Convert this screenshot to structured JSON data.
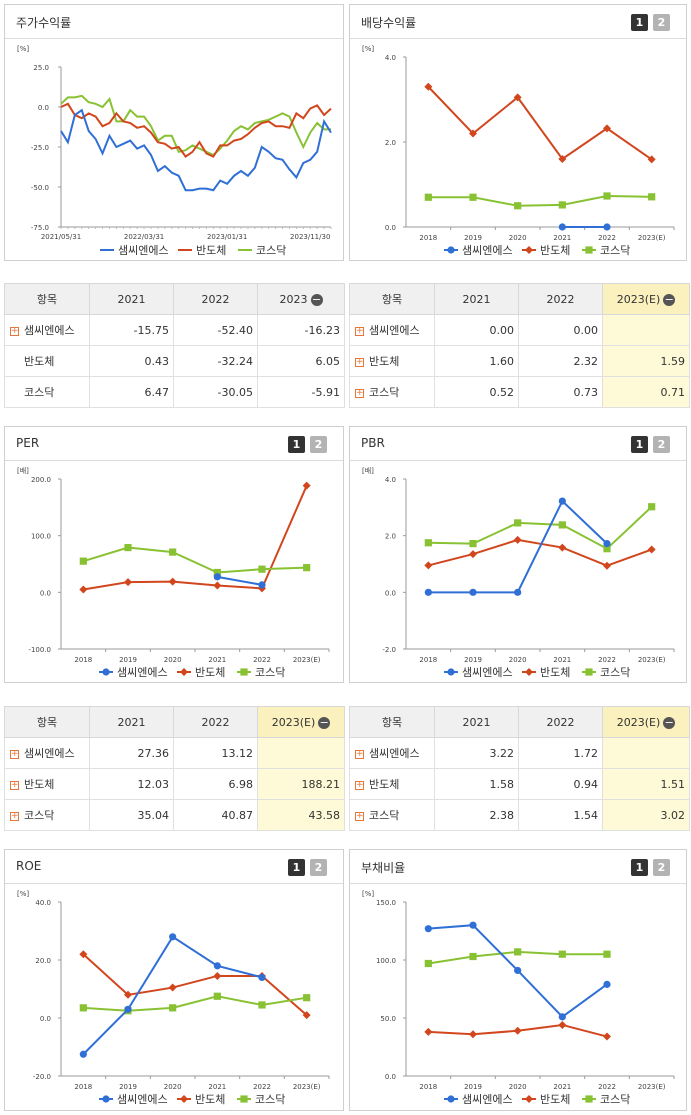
{
  "colors": {
    "samsung": "#2f6fd6",
    "semi": "#d2461e",
    "kosdaq": "#88c232"
  },
  "legend": [
    "샘씨엔에스",
    "반도체",
    "코스닥"
  ],
  "icons": {
    "page1": "page-1-icon",
    "page2": "page-2-icon",
    "expand": "plus-box-icon",
    "collapse": "minus-circle-icon"
  },
  "panels": {
    "stock": {
      "title": "주가수익률",
      "unit": "[%]",
      "yticks": [
        "25.0",
        "0.0",
        "-25.0",
        "-50.0",
        "-75.0"
      ],
      "xticks": [
        "2021/05/31",
        "2022/03/31",
        "2023/01/31",
        "2023/11/30"
      ]
    },
    "div": {
      "title": "배당수익률",
      "unit": "[%]",
      "yticks": [
        "4.0",
        "2.0",
        "0.0"
      ],
      "pg1": "1",
      "pg2": "2"
    },
    "per": {
      "title": "PER",
      "unit": "[배]",
      "yticks": [
        "200.0",
        "100.0",
        "0.0",
        "-100.0"
      ],
      "pg1": "1",
      "pg2": "2"
    },
    "pbr": {
      "title": "PBR",
      "unit": "[배]",
      "yticks": [
        "4.0",
        "2.0",
        "0.0",
        "-2.0"
      ],
      "pg1": "1",
      "pg2": "2"
    },
    "roe": {
      "title": "ROE",
      "unit": "[%]",
      "yticks": [
        "40.0",
        "20.0",
        "0.0",
        "-20.0"
      ],
      "pg1": "1",
      "pg2": "2"
    },
    "debt": {
      "title": "부채비율",
      "unit": "[%]",
      "yticks": [
        "150.0",
        "100.0",
        "50.0",
        "0.0"
      ],
      "pg1": "1",
      "pg2": "2"
    }
  },
  "tables": {
    "stock": {
      "headers": [
        "항목",
        "2021",
        "2022",
        "2023"
      ],
      "rows": [
        {
          "label": "샘씨엔에스",
          "v": [
            "-15.75",
            "-52.40",
            "-16.23"
          ]
        },
        {
          "label": "반도체",
          "v": [
            "0.43",
            "-32.24",
            "6.05"
          ]
        },
        {
          "label": "코스닥",
          "v": [
            "6.47",
            "-30.05",
            "-5.91"
          ]
        }
      ]
    },
    "div": {
      "headers": [
        "항목",
        "2021",
        "2022",
        "2023(E)"
      ],
      "rows": [
        {
          "label": "샘씨엔에스",
          "v": [
            "0.00",
            "0.00",
            ""
          ]
        },
        {
          "label": "반도체",
          "v": [
            "1.60",
            "2.32",
            "1.59"
          ]
        },
        {
          "label": "코스닥",
          "v": [
            "0.52",
            "0.73",
            "0.71"
          ]
        }
      ]
    },
    "per": {
      "headers": [
        "항목",
        "2021",
        "2022",
        "2023(E)"
      ],
      "rows": [
        {
          "label": "샘씨엔에스",
          "v": [
            "27.36",
            "13.12",
            ""
          ]
        },
        {
          "label": "반도체",
          "v": [
            "12.03",
            "6.98",
            "188.21"
          ]
        },
        {
          "label": "코스닥",
          "v": [
            "35.04",
            "40.87",
            "43.58"
          ]
        }
      ]
    },
    "pbr": {
      "headers": [
        "항목",
        "2021",
        "2022",
        "2023(E)"
      ],
      "rows": [
        {
          "label": "샘씨엔에스",
          "v": [
            "3.22",
            "1.72",
            ""
          ]
        },
        {
          "label": "반도체",
          "v": [
            "1.58",
            "0.94",
            "1.51"
          ]
        },
        {
          "label": "코스닥",
          "v": [
            "2.38",
            "1.54",
            "3.02"
          ]
        }
      ]
    }
  },
  "chart_data": [
    {
      "id": "stock",
      "type": "line",
      "title": "주가수익률",
      "ylabel": "[%]",
      "ylim": [
        -75,
        25
      ],
      "xlim": [
        0,
        41
      ],
      "x_tick_labels": [
        "2021/05/31",
        "2022/03/31",
        "2023/01/31",
        "2023/11/30"
      ],
      "x_tick_index": [
        0,
        12,
        24,
        36
      ],
      "series": [
        {
          "name": "샘씨엔에스",
          "color": "#2f6fd6",
          "values": [
            -15,
            -22,
            -5,
            -2,
            -15,
            -20,
            -29,
            -18,
            -25,
            -23,
            -21,
            -26,
            -24,
            -30,
            -40,
            -37,
            -41,
            -43,
            -52,
            -52,
            -51,
            -51,
            -52,
            -46,
            -48,
            -43,
            -40,
            -43,
            -38,
            -25,
            -28,
            -32,
            -33,
            -39,
            -44,
            -35,
            -33,
            -28,
            -9,
            -16
          ]
        },
        {
          "name": "반도체",
          "color": "#d2461e",
          "values": [
            0,
            2,
            -5,
            -7,
            -4,
            -6,
            -12,
            -10,
            -4,
            -9,
            -10,
            -13,
            -12,
            -16,
            -22,
            -23,
            -26,
            -25,
            -31,
            -28,
            -22,
            -29,
            -31,
            -24,
            -24,
            -21,
            -20,
            -17,
            -13,
            -10,
            -9,
            -12,
            -12,
            -13,
            -4,
            -7,
            -1,
            1,
            -5,
            -1
          ]
        },
        {
          "name": "코스닥",
          "color": "#88c232",
          "values": [
            2,
            6,
            6,
            7,
            3,
            2,
            0,
            5,
            -9,
            -9,
            -2,
            -6,
            -6,
            -12,
            -21,
            -18,
            -18,
            -28,
            -27,
            -24,
            -26,
            -28,
            -30,
            -26,
            -21,
            -15,
            -12,
            -14,
            -10,
            -9,
            -8,
            -6,
            -4,
            -6,
            -16,
            -25,
            -16,
            -10,
            -14,
            -14
          ]
        }
      ]
    },
    {
      "id": "div",
      "type": "line",
      "title": "배당수익률",
      "ylabel": "[%]",
      "ylim": [
        0,
        4
      ],
      "categories": [
        "2018",
        "2019",
        "2020",
        "2021",
        "2022",
        "2023(E)"
      ],
      "series": [
        {
          "name": "샘씨엔에스",
          "color": "#2f6fd6",
          "marker": "circle",
          "values": [
            null,
            null,
            null,
            0.0,
            0.0,
            null
          ]
        },
        {
          "name": "반도체",
          "color": "#d2461e",
          "marker": "diamond",
          "values": [
            3.3,
            2.2,
            3.05,
            1.6,
            2.32,
            1.59
          ]
        },
        {
          "name": "코스닥",
          "color": "#88c232",
          "marker": "square",
          "values": [
            0.7,
            0.7,
            0.5,
            0.52,
            0.73,
            0.71
          ]
        }
      ]
    },
    {
      "id": "per",
      "type": "line",
      "title": "PER",
      "ylabel": "[배]",
      "ylim": [
        -100,
        200
      ],
      "categories": [
        "2018",
        "2019",
        "2020",
        "2021",
        "2022",
        "2023(E)"
      ],
      "series": [
        {
          "name": "샘씨엔에스",
          "color": "#2f6fd6",
          "marker": "circle",
          "values": [
            null,
            null,
            null,
            27.36,
            13.12,
            null
          ]
        },
        {
          "name": "반도체",
          "color": "#d2461e",
          "marker": "diamond",
          "values": [
            5,
            18,
            19,
            12.03,
            6.98,
            188.21
          ]
        },
        {
          "name": "코스닥",
          "color": "#88c232",
          "marker": "square",
          "values": [
            55,
            79,
            71,
            35.04,
            40.87,
            43.58
          ]
        }
      ]
    },
    {
      "id": "pbr",
      "type": "line",
      "title": "PBR",
      "ylabel": "[배]",
      "ylim": [
        -2,
        4
      ],
      "categories": [
        "2018",
        "2019",
        "2020",
        "2021",
        "2022",
        "2023(E)"
      ],
      "series": [
        {
          "name": "샘씨엔에스",
          "color": "#2f6fd6",
          "marker": "circle",
          "values": [
            0,
            0,
            0,
            3.22,
            1.72,
            null
          ]
        },
        {
          "name": "반도체",
          "color": "#d2461e",
          "marker": "diamond",
          "values": [
            0.95,
            1.35,
            1.85,
            1.58,
            0.94,
            1.51
          ]
        },
        {
          "name": "코스닥",
          "color": "#88c232",
          "marker": "square",
          "values": [
            1.75,
            1.72,
            2.45,
            2.38,
            1.54,
            3.02
          ]
        }
      ]
    },
    {
      "id": "roe",
      "type": "line",
      "title": "ROE",
      "ylabel": "[%]",
      "ylim": [
        -20,
        40
      ],
      "categories": [
        "2018",
        "2019",
        "2020",
        "2021",
        "2022",
        "2023(E)"
      ],
      "series": [
        {
          "name": "샘씨엔에스",
          "color": "#2f6fd6",
          "marker": "circle",
          "values": [
            -12.5,
            3,
            28,
            18,
            14,
            null
          ]
        },
        {
          "name": "반도체",
          "color": "#d2461e",
          "marker": "diamond",
          "values": [
            22,
            8,
            10.5,
            14.5,
            14.5,
            1
          ]
        },
        {
          "name": "코스닥",
          "color": "#88c232",
          "marker": "square",
          "values": [
            3.5,
            2.5,
            3.5,
            7.5,
            4.5,
            7
          ]
        }
      ]
    },
    {
      "id": "debt",
      "type": "line",
      "title": "부채비율",
      "ylabel": "[%]",
      "ylim": [
        0,
        150
      ],
      "categories": [
        "2018",
        "2019",
        "2020",
        "2021",
        "2022",
        "2023(E)"
      ],
      "series": [
        {
          "name": "샘씨엔에스",
          "color": "#2f6fd6",
          "marker": "circle",
          "values": [
            127,
            130,
            91,
            51,
            79,
            null
          ]
        },
        {
          "name": "반도체",
          "color": "#d2461e",
          "marker": "diamond",
          "values": [
            38,
            36,
            39,
            44,
            34,
            null
          ]
        },
        {
          "name": "코스닥",
          "color": "#88c232",
          "marker": "square",
          "values": [
            97,
            103,
            107,
            105,
            105,
            null
          ]
        }
      ]
    }
  ]
}
